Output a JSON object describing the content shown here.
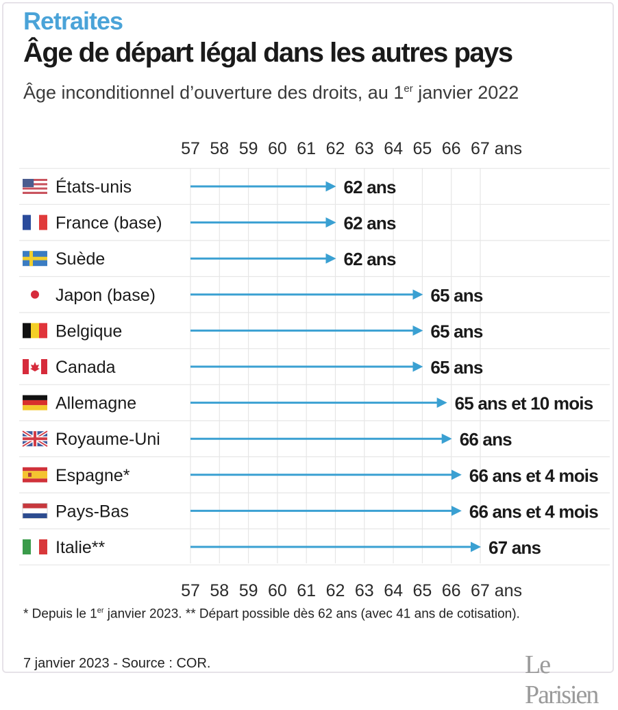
{
  "header": {
    "kicker": "Retraites",
    "title": "Âge de départ légal dans les autres pays",
    "subtitle_main": "Âge inconditionnel d’ouverture des droits, au 1",
    "subtitle_sup": "er",
    "subtitle_end": " janvier 2022"
  },
  "footer": {
    "note_start": "* Depuis le 1",
    "note_sup": "er",
    "note_end": " janvier 2023. ** Départ possible dès 62 ans (avec 41 ans de cotisation).",
    "source": "7 janvier 2023 - Source : COR.",
    "logo": "Le Parisien"
  },
  "colors": {
    "accent": "#4aa3d8",
    "arrow": "#3aa0d2",
    "grid": "#e6e6e6",
    "text": "#1a1a1a"
  },
  "chart_data": {
    "type": "bar",
    "orientation": "horizontal",
    "axis_ticks": [
      "57",
      "58",
      "59",
      "60",
      "61",
      "62",
      "63",
      "64",
      "65",
      "66",
      "67 ans"
    ],
    "xlim": [
      57,
      67
    ],
    "grid": true,
    "categories": [
      "États-unis",
      "France (base)",
      "Suède",
      "Japon (base)",
      "Belgique",
      "Canada",
      "Allemagne",
      "Royaume-Uni",
      "Espagne*",
      "Pays-Bas",
      "Italie**"
    ],
    "flags": [
      "flag-us-icon",
      "flag-france-icon",
      "flag-sweden-icon",
      "flag-japan-icon",
      "flag-belgium-icon",
      "flag-canada-icon",
      "flag-germany-icon",
      "flag-uk-icon",
      "flag-spain-icon",
      "flag-netherlands-icon",
      "flag-italy-icon"
    ],
    "values": [
      62,
      62,
      62,
      65,
      65,
      65,
      65.833,
      66,
      66.333,
      66.333,
      67
    ],
    "value_labels": [
      "62 ans",
      "62 ans",
      "62 ans",
      "65 ans",
      "65 ans",
      "65 ans",
      "65 ans et 10 mois",
      "66 ans",
      "66 ans et 4 mois",
      "66 ans et 4 mois",
      "67 ans"
    ]
  }
}
